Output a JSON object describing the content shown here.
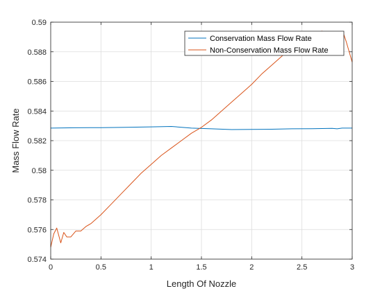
{
  "chart_data": {
    "type": "line",
    "title": "",
    "xlabel": "Length Of Nozzle",
    "ylabel": "Mass Flow Rate",
    "xlim": [
      0,
      3
    ],
    "ylim": [
      0.574,
      0.59
    ],
    "xticks": [
      0,
      0.5,
      1,
      1.5,
      2,
      2.5,
      3
    ],
    "xtick_labels": [
      "0",
      "0.5",
      "1",
      "1.5",
      "2",
      "2.5",
      "3"
    ],
    "yticks": [
      0.574,
      0.576,
      0.578,
      0.58,
      0.582,
      0.584,
      0.586,
      0.588,
      0.59
    ],
    "ytick_labels": [
      "0.574",
      "0.576",
      "0.578",
      "0.58",
      "0.582",
      "0.584",
      "0.586",
      "0.588",
      "0.59"
    ],
    "grid": true,
    "legend_position": "top-right",
    "series": [
      {
        "name": "Conservation Mass Flow Rate",
        "color": "#0072BD",
        "x": [
          0,
          0.25,
          0.5,
          0.75,
          1.0,
          1.2,
          1.4,
          1.6,
          1.8,
          2.0,
          2.2,
          2.4,
          2.6,
          2.8,
          2.85,
          2.9,
          3.0
        ],
        "y": [
          0.58285,
          0.58287,
          0.58288,
          0.5829,
          0.58293,
          0.58296,
          0.58285,
          0.5828,
          0.58275,
          0.58276,
          0.58277,
          0.5828,
          0.58281,
          0.58283,
          0.5828,
          0.58285,
          0.58285
        ]
      },
      {
        "name": "Non-Conservation Mass Flow Rate",
        "color": "#D95319",
        "x": [
          0,
          0.03,
          0.06,
          0.1,
          0.13,
          0.16,
          0.2,
          0.25,
          0.3,
          0.35,
          0.4,
          0.5,
          0.6,
          0.7,
          0.8,
          0.9,
          1.0,
          1.1,
          1.2,
          1.3,
          1.4,
          1.5,
          1.6,
          1.7,
          1.8,
          1.9,
          2.0,
          2.1,
          2.2,
          2.3,
          2.4,
          2.5,
          2.6,
          2.7,
          2.75,
          2.8,
          2.85,
          2.88,
          2.91,
          2.94,
          2.97,
          3.0
        ],
        "y": [
          0.5748,
          0.5757,
          0.5761,
          0.5751,
          0.5758,
          0.5755,
          0.5755,
          0.5759,
          0.5759,
          0.5762,
          0.5764,
          0.577,
          0.5777,
          0.5784,
          0.5791,
          0.5798,
          0.5804,
          0.581,
          0.5815,
          0.582,
          0.5825,
          0.5829,
          0.5834,
          0.584,
          0.5846,
          0.5852,
          0.5858,
          0.5865,
          0.5871,
          0.5877,
          0.5883,
          0.5887,
          0.5891,
          0.5894,
          0.5887,
          0.5892,
          0.5878,
          0.5888,
          0.5893,
          0.5887,
          0.588,
          0.5873
        ]
      }
    ]
  }
}
